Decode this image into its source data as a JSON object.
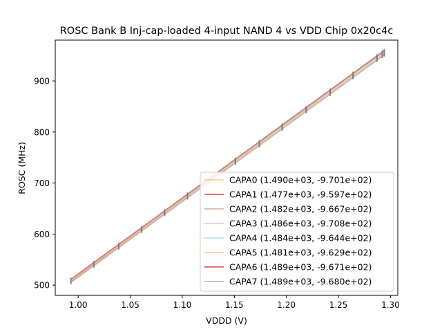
{
  "chart_data": {
    "type": "line",
    "title": "ROSC Bank B Inj-cap-loaded 4-input NAND 4 vs VDD Chip 0x20c4c",
    "xlabel": "VDDD (V)",
    "ylabel": "ROSC (MHz)",
    "xlim": [
      0.978,
      1.307
    ],
    "ylim": [
      480,
      980
    ],
    "xticks": [
      1.0,
      1.05,
      1.1,
      1.15,
      1.2,
      1.25,
      1.3
    ],
    "xtick_labels": [
      "1.00",
      "1.05",
      "1.10",
      "1.15",
      "1.20",
      "1.25",
      "1.30"
    ],
    "yticks": [
      500,
      600,
      700,
      800,
      900
    ],
    "ytick_labels": [
      "500",
      "600",
      "700",
      "800",
      "900"
    ],
    "grid": false,
    "legend_position": "lower-right",
    "measured_x": [
      0.993,
      1.015,
      1.039,
      1.061,
      1.083,
      1.105,
      1.151,
      1.174,
      1.196,
      1.219,
      1.242,
      1.264,
      1.287,
      1.292,
      1.294
    ],
    "series": [
      {
        "name": "CAPA0",
        "label": "CAPA0 (1.490e+03, -9.701e+02)",
        "slope": 1490,
        "intercept": -970.1,
        "color": "#ffbb78"
      },
      {
        "name": "CAPA1",
        "label": "CAPA1 (1.477e+03, -9.597e+02)",
        "slope": 1477,
        "intercept": -959.7,
        "color": "#d62728"
      },
      {
        "name": "CAPA2",
        "label": "CAPA2 (1.482e+03, -9.667e+02)",
        "slope": 1482,
        "intercept": -966.7,
        "color": "#c49c94"
      },
      {
        "name": "CAPA3",
        "label": "CAPA3 (1.486e+03, -9.708e+02)",
        "slope": 1486,
        "intercept": -970.8,
        "color": "#c7c7c7"
      },
      {
        "name": "CAPA4",
        "label": "CAPA4 (1.484e+03, -9.644e+02)",
        "slope": 1484,
        "intercept": -964.4,
        "color": "#9edae5"
      },
      {
        "name": "CAPA5",
        "label": "CAPA5 (1.481e+03, -9.629e+02)",
        "slope": 1481,
        "intercept": -962.9,
        "color": "#ffbb78"
      },
      {
        "name": "CAPA6",
        "label": "CAPA6 (1.489e+03, -9.671e+02)",
        "slope": 1489,
        "intercept": -967.1,
        "color": "#d62728"
      },
      {
        "name": "CAPA7",
        "label": "CAPA7 (1.489e+03, -9.680e+02)",
        "slope": 1489,
        "intercept": -968.0,
        "color": "#c49c94"
      }
    ]
  }
}
